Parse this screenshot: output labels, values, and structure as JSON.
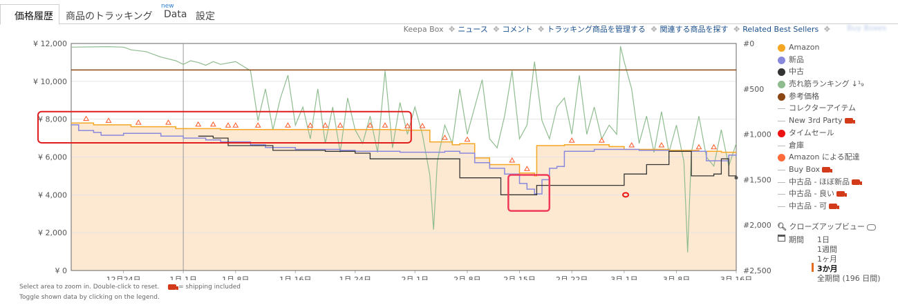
{
  "tabs": [
    {
      "label": "価格履歴",
      "active": true
    },
    {
      "label": "商品のトラッキング"
    },
    {
      "label": "Data",
      "badge": "new"
    },
    {
      "label": "設定"
    }
  ],
  "links": {
    "lead": "Keepa Box",
    "items": [
      "ニュース",
      "コメント",
      "トラッキング商品を管理する",
      "関連する商品を探す",
      "Related Best Sellers"
    ],
    "blurred": "Buy Boxes"
  },
  "legend": [
    {
      "label": "Amazon",
      "color": "#f5a623",
      "kind": "dot"
    },
    {
      "label": "新品",
      "color": "#8888dd",
      "kind": "dot"
    },
    {
      "label": "中古",
      "color": "#333333",
      "kind": "dot"
    },
    {
      "label": "売れ筋ランキング",
      "color": "#8fbc8f",
      "kind": "dot",
      "suffix": "↓¹₉"
    },
    {
      "label": "参考価格",
      "color": "#8b4513",
      "kind": "dot"
    },
    {
      "label": "コレクターアイテム",
      "kind": "line"
    },
    {
      "label": "New 3rd Party",
      "kind": "line",
      "truck": true
    },
    {
      "label": "タイムセール",
      "color": "#ee1111",
      "kind": "dot"
    },
    {
      "label": "倉庫",
      "kind": "line"
    },
    {
      "label": "Amazon による配達",
      "color": "#ff6a3a",
      "kind": "dot"
    },
    {
      "label": "Buy Box",
      "kind": "line",
      "truck": true
    },
    {
      "label": "中古品 - ほぼ新品",
      "kind": "line",
      "truck": true
    },
    {
      "label": "中古品 - 良い",
      "kind": "line",
      "truck": true
    },
    {
      "label": "中古品 - 可",
      "kind": "line",
      "truck": true
    }
  ],
  "closeup": "クローズアップビュー",
  "period": {
    "label": "期間",
    "options": [
      {
        "label": "1日"
      },
      {
        "label": "1週間"
      },
      {
        "label": "1ヶ月"
      },
      {
        "label": "3か月",
        "selected": true
      },
      {
        "label": "全期間 (196 日間)"
      }
    ]
  },
  "footer": {
    "line1": "Select area to zoom in. Double-click to reset.",
    "shipping": "= shipping included",
    "line2": "Toggle shown data by clicking on the legend."
  },
  "chart_data": {
    "type": "line",
    "y_left": {
      "min": 0,
      "max": 12000,
      "ticks": [
        "¥ 0",
        "¥ 2,000",
        "¥ 4,000",
        "¥ 6,000",
        "¥ 8,000",
        "¥ 10,000",
        "¥ 12,000"
      ]
    },
    "y_right": {
      "min": 0,
      "max": 2500,
      "inverted": true,
      "ticks": [
        "#0",
        "#500",
        "#1,000",
        "#1,500",
        "#2,000",
        "#2,500"
      ]
    },
    "x_start": "12月17日",
    "x_end": "3月16日",
    "x_ticks": [
      {
        "label": "12月24日",
        "day": 7
      },
      {
        "label": "1月 1日",
        "day": 15
      },
      {
        "label": "1月 8日",
        "day": 22
      },
      {
        "label": "1月 16日",
        "day": 30
      },
      {
        "label": "1月 24日",
        "day": 38
      },
      {
        "label": "2月 1日",
        "day": 46
      },
      {
        "label": "2月 8日",
        "day": 53
      },
      {
        "label": "2月 15日",
        "day": 60
      },
      {
        "label": "2月 22日",
        "day": 67
      },
      {
        "label": "3月 1日",
        "day": 74
      },
      {
        "label": "3月 8日",
        "day": 81
      },
      {
        "label": "3月 16日",
        "day": 89
      }
    ],
    "series": [
      {
        "name": "参考価格",
        "color": "#8b4513",
        "points": [
          [
            0,
            10600
          ],
          [
            89,
            10600
          ]
        ]
      },
      {
        "name": "Amazon",
        "color": "#f5a623",
        "step": true,
        "points": [
          [
            0,
            7800
          ],
          [
            3,
            7700
          ],
          [
            8,
            7600
          ],
          [
            14,
            7500
          ],
          [
            20,
            7450
          ],
          [
            30,
            7450
          ],
          [
            44,
            7420
          ],
          [
            48,
            6800
          ],
          [
            51,
            6650
          ],
          [
            52,
            6700
          ],
          [
            54,
            5950
          ],
          [
            56,
            5600
          ],
          [
            60,
            5150
          ],
          [
            62,
            5000
          ],
          [
            62.3,
            6600
          ],
          [
            66,
            6650
          ],
          [
            72,
            6550
          ],
          [
            74,
            6400
          ],
          [
            80,
            6350
          ],
          [
            84,
            6300
          ],
          [
            87,
            6250
          ],
          [
            89,
            6250
          ]
        ]
      },
      {
        "name": "新品",
        "color": "#8888dd",
        "step": true,
        "points": [
          [
            0,
            7700
          ],
          [
            1,
            7400
          ],
          [
            3,
            7300
          ],
          [
            4,
            7150
          ],
          [
            7,
            7250
          ],
          [
            12,
            7100
          ],
          [
            15,
            7000
          ],
          [
            18,
            6900
          ],
          [
            20,
            6800
          ],
          [
            24,
            6650
          ],
          [
            26,
            6500
          ],
          [
            30,
            6400
          ],
          [
            36,
            6350
          ],
          [
            38,
            6300
          ],
          [
            44,
            6250
          ],
          [
            50,
            6300
          ],
          [
            52,
            6200
          ],
          [
            54,
            5700
          ],
          [
            56,
            5400
          ],
          [
            58,
            5100
          ],
          [
            60,
            4600
          ],
          [
            61,
            4300
          ],
          [
            62,
            4050
          ],
          [
            63,
            4800
          ],
          [
            64,
            5400
          ],
          [
            65,
            5500
          ],
          [
            66,
            6300
          ],
          [
            70,
            6400
          ],
          [
            76,
            6350
          ],
          [
            80,
            6300
          ],
          [
            85,
            5800
          ],
          [
            88,
            6100
          ],
          [
            89,
            6050
          ]
        ]
      },
      {
        "name": "中古",
        "color": "#333333",
        "step": true,
        "points": [
          [
            17,
            7100
          ],
          [
            19,
            7000
          ],
          [
            21,
            6600
          ],
          [
            27,
            6350
          ],
          [
            30,
            6350
          ],
          [
            34,
            6300
          ],
          [
            38,
            6200
          ],
          [
            40,
            5900
          ],
          [
            45,
            5900
          ],
          [
            50,
            5900
          ],
          [
            52,
            4900
          ],
          [
            57,
            4900
          ],
          [
            57.5,
            4000
          ],
          [
            62,
            4000
          ],
          [
            62.3,
            4500
          ],
          [
            66,
            4500
          ],
          [
            72,
            4500
          ],
          [
            74,
            5100
          ],
          [
            77,
            5600
          ],
          [
            80,
            6300
          ],
          [
            83,
            5000
          ],
          [
            86,
            5100
          ],
          [
            87,
            5900
          ],
          [
            88,
            5000
          ],
          [
            89,
            4900
          ]
        ]
      },
      {
        "name": "売れ筋ランキング",
        "color": "#8fbc8f",
        "axis": "right",
        "points": [
          [
            0,
            40
          ],
          [
            5,
            35
          ],
          [
            7,
            40
          ],
          [
            8,
            70
          ],
          [
            10,
            90
          ],
          [
            12,
            150
          ],
          [
            14,
            190
          ],
          [
            15,
            230
          ],
          [
            16,
            190
          ],
          [
            17,
            210
          ],
          [
            18,
            240
          ],
          [
            19,
            200
          ],
          [
            20,
            230
          ],
          [
            22,
            200
          ],
          [
            24,
            300
          ],
          [
            25,
            850
          ],
          [
            26,
            500
          ],
          [
            27,
            950
          ],
          [
            28,
            600
          ],
          [
            29,
            350
          ],
          [
            30,
            900
          ],
          [
            31,
            700
          ],
          [
            32,
            1050
          ],
          [
            33,
            500
          ],
          [
            34,
            1100
          ],
          [
            35,
            700
          ],
          [
            36,
            1200
          ],
          [
            37,
            600
          ],
          [
            38,
            950
          ],
          [
            39,
            1100
          ],
          [
            40,
            800
          ],
          [
            41,
            1200
          ],
          [
            42,
            300
          ],
          [
            43,
            1150
          ],
          [
            44,
            650
          ],
          [
            45,
            1000
          ],
          [
            46,
            700
          ],
          [
            47,
            1000
          ],
          [
            48,
            1450
          ],
          [
            48.5,
            2050
          ],
          [
            49,
            1300
          ],
          [
            50,
            900
          ],
          [
            51,
            1100
          ],
          [
            52,
            500
          ],
          [
            53,
            1000
          ],
          [
            54,
            700
          ],
          [
            55,
            400
          ],
          [
            56,
            1050
          ],
          [
            57,
            1150
          ],
          [
            58,
            800
          ],
          [
            59,
            300
          ],
          [
            60,
            1050
          ],
          [
            61,
            900
          ],
          [
            62,
            200
          ],
          [
            63,
            850
          ],
          [
            64,
            1050
          ],
          [
            65,
            700
          ],
          [
            66,
            600
          ],
          [
            67,
            1000
          ],
          [
            68,
            350
          ],
          [
            69,
            1000
          ],
          [
            70,
            700
          ],
          [
            71,
            1050
          ],
          [
            72,
            900
          ],
          [
            73,
            1000
          ],
          [
            73.5,
            30
          ],
          [
            74,
            200
          ],
          [
            75,
            500
          ],
          [
            76,
            1100
          ],
          [
            77,
            800
          ],
          [
            78,
            1200
          ],
          [
            79,
            750
          ],
          [
            80,
            1200
          ],
          [
            81,
            900
          ],
          [
            82,
            1300
          ],
          [
            82.5,
            2300
          ],
          [
            83,
            1200
          ],
          [
            84,
            800
          ],
          [
            85,
            1250
          ],
          [
            86,
            1350
          ],
          [
            87,
            950
          ],
          [
            88,
            1350
          ],
          [
            89,
            1100
          ]
        ]
      }
    ],
    "deal_markers_day": [
      2,
      5,
      9,
      13,
      17,
      19,
      21,
      22,
      25,
      29,
      32,
      34,
      36,
      40,
      42,
      45,
      47,
      50,
      53,
      59,
      61,
      67,
      71,
      75,
      79,
      84,
      86
    ]
  }
}
